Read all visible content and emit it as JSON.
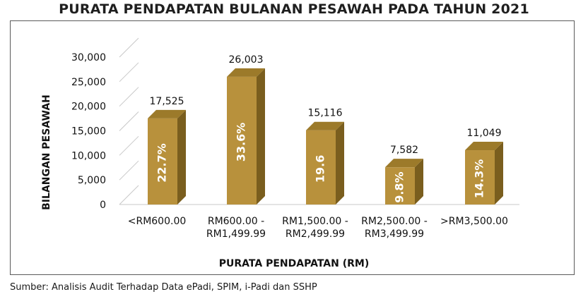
{
  "chart_data": {
    "type": "bar",
    "title": "PURATA PENDAPATAN BULANAN PESAWAH PADA TAHUN 2021",
    "xlabel": "PURATA PENDAPATAN (RM)",
    "ylabel": "BILANGAN PESAWAH",
    "ylim": [
      0,
      30000
    ],
    "yticks": [
      0,
      5000,
      10000,
      15000,
      20000,
      25000,
      30000
    ],
    "ytick_labels": [
      "0",
      "5,000",
      "10,000",
      "15,000",
      "20,000",
      "25,000",
      "30,000"
    ],
    "categories": [
      [
        "<RM600.00"
      ],
      [
        "RM600.00 -",
        "RM1,499.99"
      ],
      [
        "RM1,500.00 -",
        "RM2,499.99"
      ],
      [
        "RM2,500.00 -",
        "RM3,499.99"
      ],
      [
        ">RM3,500.00"
      ]
    ],
    "values": [
      17525,
      26003,
      15116,
      7582,
      11049
    ],
    "value_labels": [
      "17,525",
      "26,003",
      "15,116",
      "7,582",
      "11,049"
    ],
    "percent_labels": [
      "22.7%",
      "33.6%",
      "19.6",
      "9.8%",
      "14.3%"
    ],
    "grid": true,
    "legend": "none",
    "colors": {
      "bar_front": "#B8913C",
      "bar_side": "#7A5E1E",
      "bar_top": "#9C7A2A",
      "axis_line": "#c8c8c8",
      "percent_text": "#ffffff"
    }
  },
  "source": "Sumber: Analisis Audit Terhadap Data ePadi, SPIM, i-Padi dan SSHP"
}
